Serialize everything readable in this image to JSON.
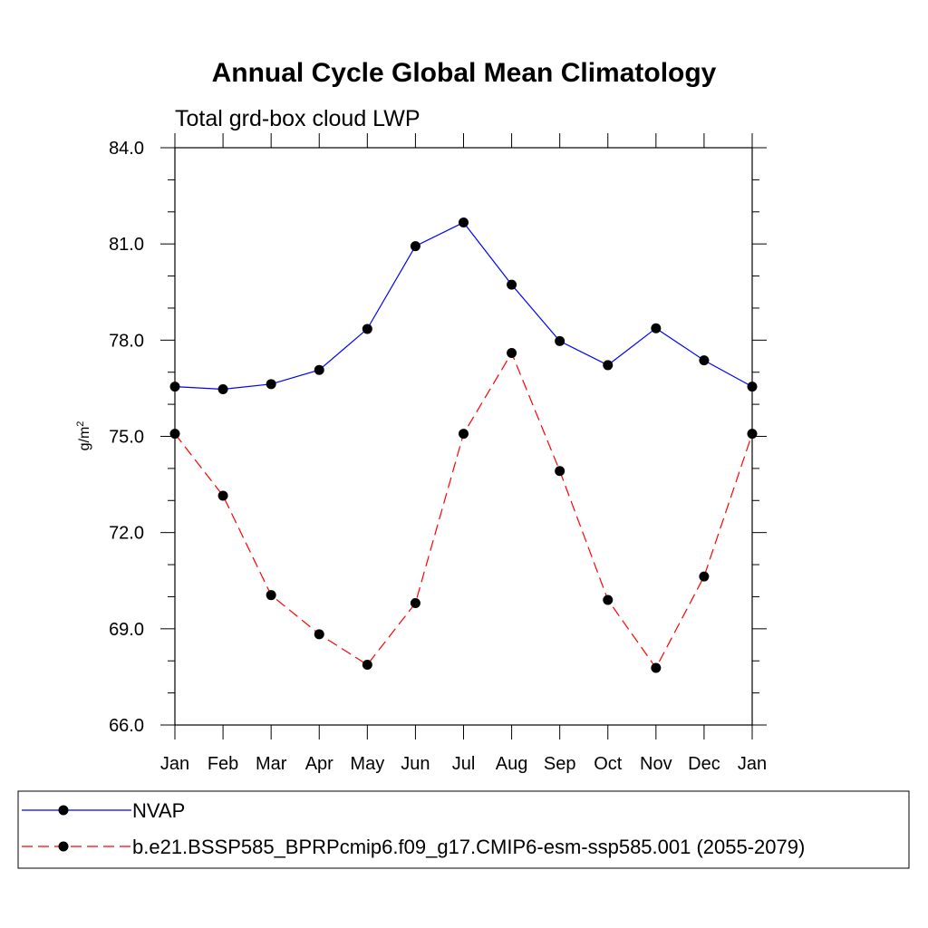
{
  "chart_data": {
    "type": "line",
    "title": "Annual Cycle Global Mean Climatology",
    "subtitle": "Total grd-box cloud LWP",
    "ylabel": "g/m",
    "ylabel_superscript": "2",
    "xlabel": "",
    "categories": [
      "Jan",
      "Feb",
      "Mar",
      "Apr",
      "May",
      "Jun",
      "Jul",
      "Aug",
      "Sep",
      "Oct",
      "Nov",
      "Dec",
      "Jan"
    ],
    "ylim": [
      66.0,
      84.0
    ],
    "yticks": [
      "66.0",
      "69.0",
      "72.0",
      "75.0",
      "78.0",
      "81.0",
      "84.0"
    ],
    "grid": false,
    "legend_position": "bottom",
    "series": [
      {
        "name": "NVAP",
        "color": "#0000ff",
        "line_style": "solid",
        "marker": "filled-circle",
        "values": [
          76.55,
          76.47,
          76.63,
          77.07,
          78.35,
          80.93,
          81.67,
          79.73,
          77.97,
          77.22,
          78.37,
          77.37,
          76.55
        ]
      },
      {
        "name": "b.e21.BSSP585_BPRPcmip6.f09_g17.CMIP6-esm-ssp585.001 (2055-2079)",
        "color": "#ff0000",
        "line_style": "dashed",
        "marker": "filled-circle",
        "values": [
          75.08,
          73.15,
          70.05,
          68.83,
          67.88,
          69.8,
          75.08,
          77.6,
          73.92,
          69.9,
          67.78,
          70.63,
          75.08
        ]
      }
    ]
  }
}
